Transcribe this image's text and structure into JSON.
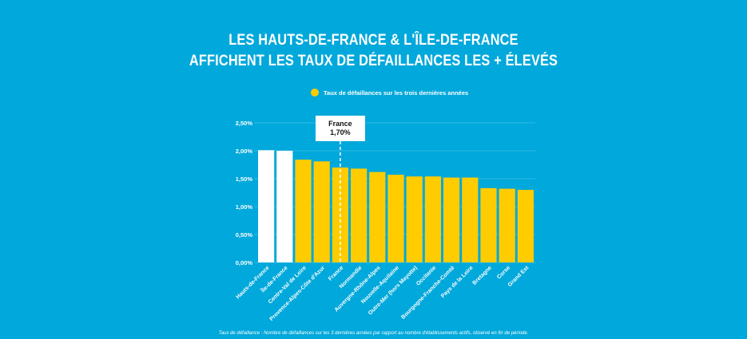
{
  "chart_data": {
    "type": "bar",
    "title": [
      "LES HAUTS-DE-FRANCE & L'ÎLE-DE-FRANCE",
      "AFFICHENT LES TAUX DE DÉFAILLANCES LES + ÉLEVÉS"
    ],
    "legend": "Taux de défaillances sur les trois dernières années",
    "legend_placement": "top-center",
    "xlabel": "",
    "ylabel": "",
    "ylim": [
      0,
      2.5
    ],
    "yticks": [
      0,
      0.5,
      1.0,
      1.5,
      2.0,
      2.5
    ],
    "ytick_labels": [
      "0,00%",
      "0,50%",
      "1,00%",
      "1,50%",
      "2,00%",
      "2,50%"
    ],
    "grid": true,
    "categories": [
      "Hauts-de-France",
      "Île-de-France",
      "Centre-Val de Loire",
      "Provence-Alpes-Côte d'Azur",
      "France",
      "Normandie",
      "Auvergne-Rhône-Alpes",
      "Nouvelle-Aquitaine",
      "Outre-Mer (hors Mayotte)",
      "Occitanie",
      "Bourgogne-Franche-Comté",
      "Pays de la Loire",
      "Bretagne",
      "Corse",
      "Grand Est"
    ],
    "values": [
      2.01,
      2.0,
      1.84,
      1.81,
      1.7,
      1.68,
      1.62,
      1.57,
      1.54,
      1.54,
      1.52,
      1.52,
      1.33,
      1.32,
      1.3
    ],
    "highlighted": [
      "Hauts-de-France",
      "Île-de-France"
    ],
    "annotation": {
      "label": "France",
      "value_text": "1,70%",
      "category": "France"
    },
    "colors": {
      "bar": "#ffcc00",
      "highlight": "#ffffff",
      "background": "#00a8db"
    }
  },
  "footnote": "Taux de défaillance : Nombre de défaillances sur les 3 dernières années par rapport au nombre d'établissements actifs, observé en fin de période."
}
